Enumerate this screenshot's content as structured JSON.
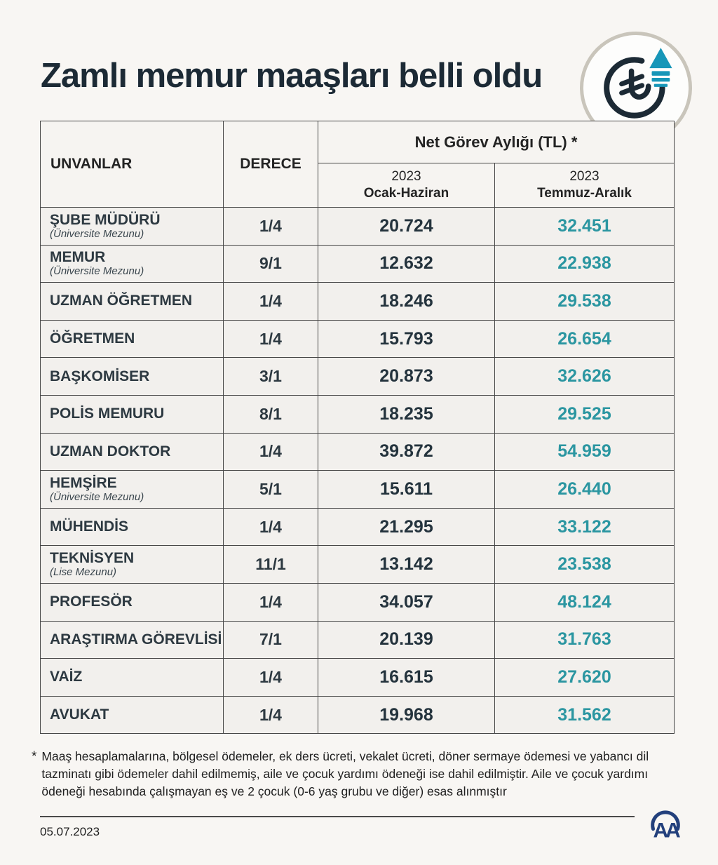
{
  "page": {
    "title": "Zamlı memur maaşları belli oldu",
    "date": "05.07.2023",
    "source_logo": "AA"
  },
  "colors": {
    "title_navy": "#1c2a35",
    "value_dark": "#24333d",
    "value_teal": "#2b96a1",
    "icon_arrow_blue": "#1796b8",
    "logo_navy": "#23407c"
  },
  "icon": {
    "currency_symbol": "₺"
  },
  "table_headers": {
    "col_titles": "UNVANLAR",
    "col_degree": "DERECE",
    "group": "Net Görev Aylığı (TL) *",
    "sub1_year": "2023",
    "sub1_range": "Ocak-Haziran",
    "sub2_year": "2023",
    "sub2_range": "Temmuz-Aralık"
  },
  "chart_data": {
    "type": "table",
    "title": "Zamlı memur maaşları belli oldu",
    "columns": [
      "UNVANLAR",
      "DERECE",
      "Net Görev Aylığı (TL) 2023 Ocak-Haziran",
      "Net Görev Aylığı (TL) 2023 Temmuz-Aralık"
    ],
    "rows": [
      {
        "title": "ŞUBE MÜDÜRÜ",
        "subtitle": "(Üniversite Mezunu)",
        "degree": "1/4",
        "jan_jun": "20.724",
        "jul_dec": "32.451"
      },
      {
        "title": "MEMUR",
        "subtitle": "(Üniversite Mezunu)",
        "degree": "9/1",
        "jan_jun": "12.632",
        "jul_dec": "22.938"
      },
      {
        "title": "UZMAN ÖĞRETMEN",
        "subtitle": "",
        "degree": "1/4",
        "jan_jun": "18.246",
        "jul_dec": "29.538"
      },
      {
        "title": "ÖĞRETMEN",
        "subtitle": "",
        "degree": "1/4",
        "jan_jun": "15.793",
        "jul_dec": "26.654"
      },
      {
        "title": "BAŞKOMİSER",
        "subtitle": "",
        "degree": "3/1",
        "jan_jun": "20.873",
        "jul_dec": "32.626"
      },
      {
        "title": "POLİS MEMURU",
        "subtitle": "",
        "degree": "8/1",
        "jan_jun": "18.235",
        "jul_dec": "29.525"
      },
      {
        "title": "UZMAN DOKTOR",
        "subtitle": "",
        "degree": "1/4",
        "jan_jun": "39.872",
        "jul_dec": "54.959"
      },
      {
        "title": "HEMŞİRE",
        "subtitle": "(Üniversite Mezunu)",
        "degree": "5/1",
        "jan_jun": "15.611",
        "jul_dec": "26.440"
      },
      {
        "title": "MÜHENDİS",
        "subtitle": "",
        "degree": "1/4",
        "jan_jun": "21.295",
        "jul_dec": "33.122"
      },
      {
        "title": "TEKNİSYEN",
        "subtitle": "(Lise Mezunu)",
        "degree": "11/1",
        "jan_jun": "13.142",
        "jul_dec": "23.538"
      },
      {
        "title": "PROFESÖR",
        "subtitle": "",
        "degree": "1/4",
        "jan_jun": "34.057",
        "jul_dec": "48.124"
      },
      {
        "title": "ARAŞTIRMA GÖREVLİSİ",
        "subtitle": "",
        "degree": "7/1",
        "jan_jun": "20.139",
        "jul_dec": "31.763"
      },
      {
        "title": "VAİZ",
        "subtitle": "",
        "degree": "1/4",
        "jan_jun": "16.615",
        "jul_dec": "27.620"
      },
      {
        "title": "AVUKAT",
        "subtitle": "",
        "degree": "1/4",
        "jan_jun": "19.968",
        "jul_dec": "31.562"
      }
    ]
  },
  "footnote": {
    "marker": "*",
    "text": "Maaş hesaplamalarına, bölgesel ödemeler, ek ders ücreti, vekalet ücreti, döner sermaye ödemesi ve yabancı dil tazminatı gibi ödemeler dahil edilmemiş, aile ve çocuk yardımı ödeneği ise dahil edilmiştir. Aile ve çocuk yardımı ödeneği hesabında çalışmayan eş ve 2 çocuk (0-6 yaş grubu ve diğer) esas alınmıştır"
  }
}
